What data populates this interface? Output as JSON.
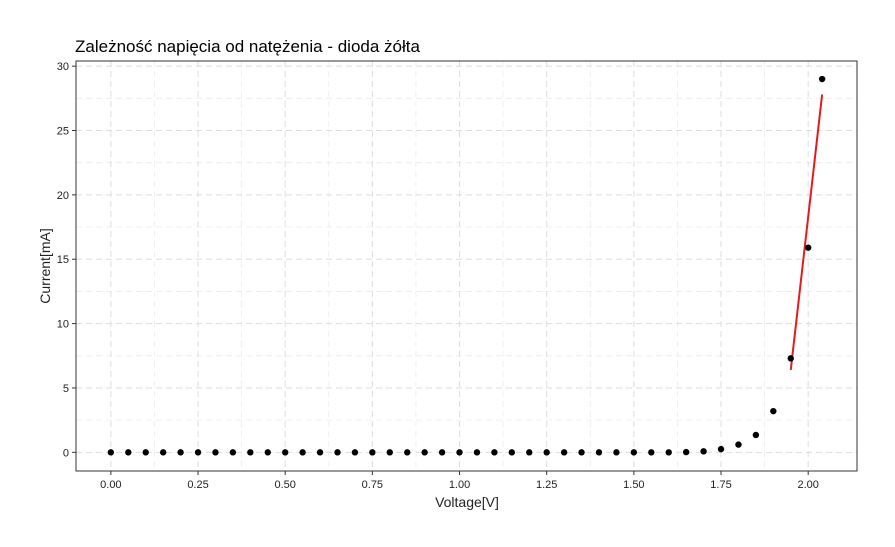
{
  "chart_data": {
    "type": "scatter",
    "title": "Zależność napięcia od natężenia - dioda żółta",
    "xlabel": "Voltage[V]",
    "ylabel": "Current[mA]",
    "xlim": [
      -0.1,
      2.14
    ],
    "ylim": [
      -1.45,
      30.4
    ],
    "x_ticks": [
      0.0,
      0.25,
      0.5,
      0.75,
      1.0,
      1.25,
      1.5,
      1.75,
      2.0
    ],
    "x_tick_labels": [
      "0.00",
      "0.25",
      "0.50",
      "0.75",
      "1.00",
      "1.25",
      "1.50",
      "1.75",
      "2.00"
    ],
    "y_ticks": [
      0,
      5,
      10,
      15,
      20,
      25,
      30
    ],
    "y_tick_labels": [
      "0",
      "5",
      "10",
      "15",
      "20",
      "25",
      "30"
    ],
    "grid": true,
    "points": {
      "x": [
        0.0,
        0.05,
        0.1,
        0.15,
        0.2,
        0.25,
        0.3,
        0.35,
        0.4,
        0.45,
        0.5,
        0.55,
        0.6,
        0.65,
        0.7,
        0.75,
        0.8,
        0.85,
        0.9,
        0.95,
        1.0,
        1.05,
        1.1,
        1.15,
        1.2,
        1.25,
        1.3,
        1.35,
        1.4,
        1.45,
        1.5,
        1.55,
        1.6,
        1.65,
        1.7,
        1.75,
        1.8,
        1.85,
        1.9,
        1.95,
        2.0,
        2.04
      ],
      "y": [
        0,
        0,
        0,
        0,
        0,
        0,
        0,
        0,
        0,
        0,
        0,
        0,
        0,
        0,
        0,
        0,
        0,
        0,
        0,
        0,
        0,
        0,
        0,
        0,
        0,
        0,
        0,
        0,
        0,
        0,
        0,
        0,
        0,
        0.02,
        0.08,
        0.25,
        0.6,
        1.35,
        3.2,
        7.3,
        15.9,
        29.0
      ],
      "color": "#000000"
    },
    "fit_line": {
      "x": [
        1.95,
        2.04
      ],
      "y": [
        6.4,
        27.8
      ],
      "color": "#e41a1c"
    }
  }
}
